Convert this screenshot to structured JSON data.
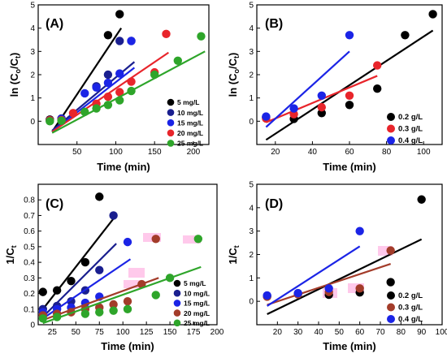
{
  "figure": {
    "colors": {
      "black": "#000000",
      "navy": "#1a1f8f",
      "blue": "#1b24e6",
      "red": "#e8252b",
      "green": "#2ea52a",
      "brown": "#a33c2a",
      "highlight": "#ffc0e8"
    }
  },
  "chart_data": [
    {
      "panel": "(A)",
      "type": "scatter",
      "xlabel": "Time (min)",
      "ylabel": "ln (Co/Ct)",
      "xlim": [
        0,
        220
      ],
      "ylim": [
        -1,
        5
      ],
      "xticks": [
        50,
        100,
        150,
        200
      ],
      "yticks": [
        0,
        1,
        2,
        3,
        4,
        5
      ],
      "legend_position": "bottom-right",
      "series": [
        {
          "name": "5 mg/L",
          "color": "black",
          "x": [
            15,
            30,
            90,
            105
          ],
          "y": [
            0.07,
            0.1,
            3.7,
            4.6
          ],
          "fit": [
            [
              18,
              -0.45
            ],
            [
              107,
              4.0
            ]
          ]
        },
        {
          "name": "10 mg/L",
          "color": "navy",
          "x": [
            15,
            30,
            75,
            90,
            105,
            120
          ],
          "y": [
            0.05,
            0.12,
            1.5,
            2.0,
            3.45,
            3.45
          ],
          "fit": [
            [
              18,
              -0.4
            ],
            [
              124,
              2.55
            ]
          ]
        },
        {
          "name": "15 mg/L",
          "color": "blue",
          "x": [
            15,
            30,
            60,
            75,
            90,
            105,
            120
          ],
          "y": [
            0.03,
            0.1,
            1.2,
            1.45,
            1.65,
            2.05,
            3.45
          ],
          "fit": [
            [
              18,
              -0.45
            ],
            [
              124,
              2.3
            ]
          ]
        },
        {
          "name": "20 mg/L",
          "color": "red",
          "x": [
            15,
            30,
            45,
            75,
            90,
            105,
            120,
            150,
            165
          ],
          "y": [
            0.04,
            0.05,
            0.35,
            0.75,
            1.05,
            1.25,
            1.7,
            2.1,
            3.75
          ],
          "fit": [
            [
              18,
              -0.45
            ],
            [
              168,
              2.95
            ]
          ]
        },
        {
          "name": "25 mg/L",
          "color": "green",
          "x": [
            15,
            30,
            60,
            75,
            90,
            105,
            120,
            150,
            180,
            210
          ],
          "y": [
            0.0,
            0.02,
            0.4,
            0.55,
            0.7,
            0.9,
            1.3,
            2.0,
            2.6,
            3.65
          ],
          "fit": [
            [
              18,
              -0.5
            ],
            [
              215,
              3.0
            ]
          ]
        }
      ]
    },
    {
      "panel": "(B)",
      "type": "scatter",
      "xlabel": "Time (min)",
      "ylabel": "ln (Co/Ct)",
      "xlim": [
        10,
        110
      ],
      "ylim": [
        -1,
        5
      ],
      "xticks": [
        20,
        40,
        60,
        80,
        100
      ],
      "yticks": [
        0,
        1,
        2,
        3,
        4,
        5
      ],
      "legend_position": "bottom-right",
      "series": [
        {
          "name": "0.2 g/L",
          "color": "black",
          "x": [
            15,
            30,
            45,
            60,
            75,
            90,
            105
          ],
          "y": [
            0.17,
            0.1,
            0.35,
            0.7,
            1.4,
            3.7,
            4.6
          ],
          "fit": [
            [
              15,
              -0.8
            ],
            [
              105,
              3.9
            ]
          ]
        },
        {
          "name": "0.3 g/L",
          "color": "red",
          "x": [
            15,
            30,
            45,
            60,
            75
          ],
          "y": [
            0.12,
            0.3,
            0.6,
            1.1,
            2.4
          ],
          "fit": [
            [
              15,
              -0.05
            ],
            [
              75,
              1.95
            ]
          ]
        },
        {
          "name": "0.4 g/L",
          "color": "blue",
          "x": [
            15,
            30,
            45,
            60
          ],
          "y": [
            0.2,
            0.55,
            1.1,
            3.7
          ],
          "fit": [
            [
              15,
              -0.25
            ],
            [
              60,
              3.0
            ]
          ]
        }
      ]
    },
    {
      "panel": "(C)",
      "type": "scatter",
      "xlabel": "Time (min)",
      "ylabel": "1/Ct",
      "xlim": [
        10,
        200
      ],
      "ylim": [
        0,
        0.9
      ],
      "xticks": [
        25,
        50,
        75,
        100,
        125,
        150,
        175,
        200
      ],
      "yticks": [
        0.0,
        0.1,
        0.2,
        0.3,
        0.4,
        0.5,
        0.6,
        0.7,
        0.8
      ],
      "legend_position": "bottom-right",
      "series": [
        {
          "name": "5 mg/L",
          "color": "black",
          "x": [
            15,
            30,
            45,
            60,
            75
          ],
          "y": [
            0.21,
            0.22,
            0.28,
            0.4,
            0.82
          ],
          "fit": [
            [
              15,
              0.1
            ],
            [
              90,
              0.68
            ]
          ]
        },
        {
          "name": "10 mg/L",
          "color": "navy",
          "x": [
            15,
            30,
            45,
            60,
            75,
            90
          ],
          "y": [
            0.1,
            0.12,
            0.15,
            0.22,
            0.35,
            0.7
          ],
          "fit": [
            [
              15,
              0.05
            ],
            [
              93,
              0.52
            ]
          ]
        },
        {
          "name": "15 mg/L",
          "color": "blue",
          "x": [
            15,
            30,
            45,
            60,
            75,
            105
          ],
          "y": [
            0.08,
            0.1,
            0.11,
            0.14,
            0.18,
            0.53
          ],
          "fit": [
            [
              15,
              0.04
            ],
            [
              108,
              0.42
            ]
          ]
        },
        {
          "name": "20 mg/L",
          "color": "brown",
          "x": [
            15,
            30,
            45,
            60,
            75,
            90,
            105,
            120,
            135
          ],
          "y": [
            0.06,
            0.07,
            0.08,
            0.1,
            0.11,
            0.13,
            0.15,
            0.26,
            0.55
          ],
          "fit": [
            [
              15,
              0.03
            ],
            [
              138,
              0.3
            ]
          ]
        },
        {
          "name": "25 mg/L",
          "color": "green",
          "x": [
            15,
            30,
            60,
            75,
            90,
            105,
            135,
            150,
            180
          ],
          "y": [
            0.04,
            0.05,
            0.07,
            0.08,
            0.09,
            0.1,
            0.19,
            0.3,
            0.55
          ],
          "fit": [
            [
              15,
              0.01
            ],
            [
              183,
              0.37
            ]
          ]
        }
      ]
    },
    {
      "panel": "(D)",
      "type": "scatter",
      "xlabel": "Time (min)",
      "ylabel": "1/Ct",
      "xlim": [
        10,
        100
      ],
      "ylim": [
        -1,
        5
      ],
      "xticks": [
        20,
        30,
        40,
        50,
        60,
        70,
        80,
        90,
        100
      ],
      "yticks": [
        0,
        1,
        2,
        3,
        4,
        5
      ],
      "legend_position": "bottom-right",
      "series": [
        {
          "name": "0.2 g/L",
          "color": "black",
          "x": [
            15,
            30,
            45,
            60,
            75,
            90
          ],
          "y": [
            0.22,
            0.32,
            0.28,
            0.38,
            0.82,
            4.35
          ],
          "fit": [
            [
              15,
              -0.55
            ],
            [
              90,
              2.65
            ]
          ]
        },
        {
          "name": "0.3 g/L",
          "color": "brown",
          "x": [
            15,
            30,
            45,
            60,
            75
          ],
          "y": [
            0.2,
            0.3,
            0.4,
            0.55,
            2.17
          ],
          "fit": [
            [
              15,
              -0.15
            ],
            [
              75,
              1.6
            ]
          ]
        },
        {
          "name": "0.4 g/L",
          "color": "blue",
          "x": [
            15,
            30,
            45,
            60
          ],
          "y": [
            0.25,
            0.35,
            0.55,
            3.0
          ],
          "fit": [
            [
              15,
              -0.2
            ],
            [
              60,
              2.35
            ]
          ]
        }
      ]
    }
  ]
}
